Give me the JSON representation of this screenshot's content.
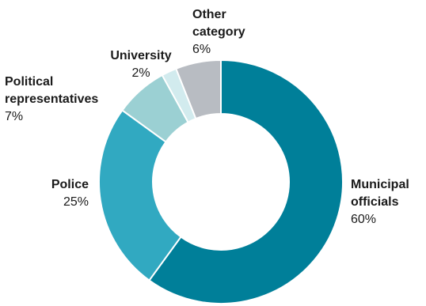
{
  "chart_data": {
    "type": "pie",
    "donut": true,
    "slices": [
      {
        "name_lines": [
          "Municipal",
          "officials"
        ],
        "value": 60,
        "value_label": "60%",
        "color": "#007f99"
      },
      {
        "name_lines": [
          "Police"
        ],
        "value": 25,
        "value_label": "25%",
        "color": "#31a9c1"
      },
      {
        "name_lines": [
          "Political",
          "representatives"
        ],
        "value": 7,
        "value_label": "7%",
        "color": "#9bd0d3"
      },
      {
        "name_lines": [
          "University"
        ],
        "value": 2,
        "value_label": "2%",
        "color": "#d2ebee"
      },
      {
        "name_lines": [
          "Other",
          "category"
        ],
        "value": 6,
        "value_label": "6%",
        "color": "#b8bcc2"
      }
    ]
  }
}
